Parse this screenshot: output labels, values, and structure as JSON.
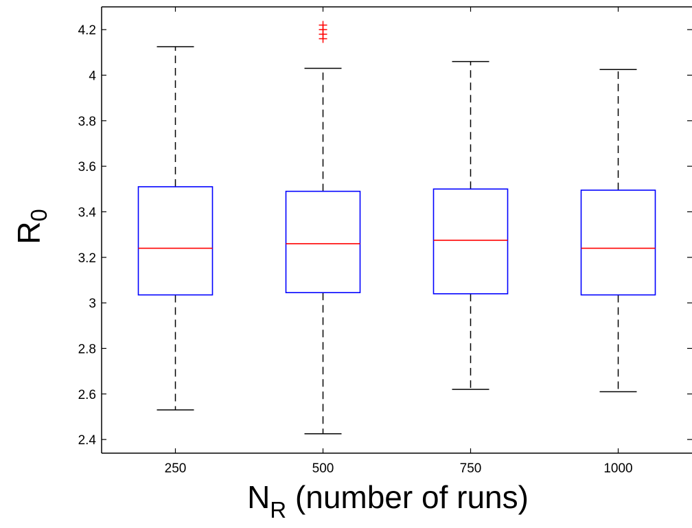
{
  "chart_data": {
    "type": "box",
    "title": "",
    "xlabel": {
      "main": "N",
      "sub": "R",
      "rest": " (number of runs)"
    },
    "ylabel": {
      "main": "R",
      "sub": "0"
    },
    "categories": [
      "250",
      "500",
      "750",
      "1000"
    ],
    "ylim": [
      2.34,
      4.3
    ],
    "yticks": [
      2.4,
      2.6,
      2.8,
      3,
      3.2,
      3.4,
      3.6,
      3.8,
      4,
      4.2
    ],
    "ytick_labels": [
      "2.4",
      "2.6",
      "2.8",
      "3",
      "3.2",
      "3.4",
      "3.6",
      "3.8",
      "4",
      "4.2"
    ],
    "grid": false,
    "boxes": [
      {
        "category": "250",
        "whisker_low": 2.53,
        "q1": 3.035,
        "median": 3.24,
        "q3": 3.51,
        "whisker_high": 4.125,
        "outliers": []
      },
      {
        "category": "500",
        "whisker_low": 2.425,
        "q1": 3.045,
        "median": 3.26,
        "q3": 3.49,
        "whisker_high": 4.03,
        "outliers": [
          4.16,
          4.18,
          4.2,
          4.22
        ]
      },
      {
        "category": "750",
        "whisker_low": 2.62,
        "q1": 3.04,
        "median": 3.275,
        "q3": 3.5,
        "whisker_high": 4.06,
        "outliers": []
      },
      {
        "category": "1000",
        "whisker_low": 2.61,
        "q1": 3.035,
        "median": 3.24,
        "q3": 3.495,
        "whisker_high": 4.025,
        "outliers": []
      }
    ],
    "colors": {
      "box": "#0000ff",
      "median": "#ff0000",
      "whisker": "#000000",
      "outlier": "#ff0000",
      "axis": "#000000"
    }
  }
}
